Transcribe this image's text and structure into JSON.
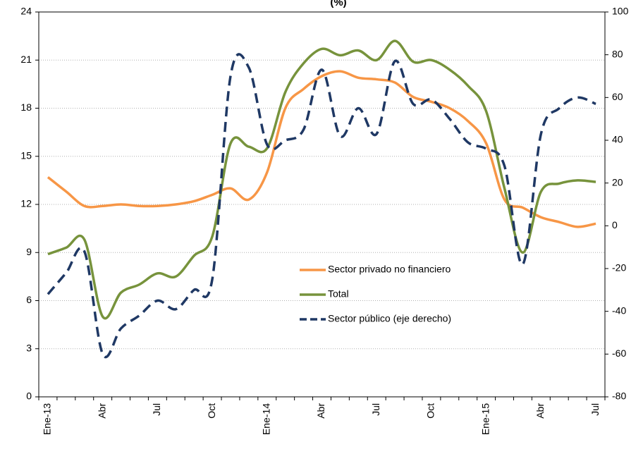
{
  "chart_data": {
    "type": "line",
    "title": "(%)",
    "categories": [
      "Ene-13",
      null,
      null,
      "Abr",
      null,
      null,
      "Jul",
      null,
      null,
      "Oct",
      null,
      null,
      "Ene-14",
      null,
      null,
      "Abr",
      null,
      null,
      "Jul",
      null,
      null,
      "Oct",
      null,
      null,
      "Ene-15",
      null,
      null,
      "Abr",
      null,
      null,
      "Jul"
    ],
    "series": [
      {
        "name": "Sector privado no financiero",
        "color": "#f79646",
        "values": [
          13.7,
          12.8,
          11.9,
          11.9,
          12.0,
          11.9,
          11.9,
          12.0,
          12.2,
          12.6,
          13.0,
          12.3,
          14.0,
          18.0,
          19.2,
          20.0,
          20.3,
          19.9,
          19.8,
          19.6,
          18.7,
          18.4,
          18.0,
          17.2,
          15.8,
          12.3,
          11.8,
          11.2,
          10.9,
          10.6,
          10.8
        ]
      },
      {
        "name": "Total",
        "color": "#77933c",
        "values": [
          8.9,
          9.3,
          9.8,
          5.0,
          6.5,
          7.0,
          7.7,
          7.5,
          8.8,
          10.0,
          15.8,
          15.6,
          15.5,
          19.0,
          20.8,
          21.7,
          21.3,
          21.6,
          21.0,
          22.2,
          20.9,
          21.0,
          20.4,
          19.4,
          17.8,
          13.0,
          9.0,
          12.8,
          13.3,
          13.5,
          13.4
        ]
      },
      {
        "name": "Sector público (eje derecho)",
        "color": "#1f3864",
        "axis": "y2",
        "dashed": true,
        "values": [
          -32,
          -22,
          -12,
          -60,
          -48,
          -42,
          -35,
          -39,
          -30,
          -25,
          70,
          74,
          38,
          40,
          45,
          73,
          42,
          55,
          43,
          77,
          57,
          59,
          50,
          39,
          36,
          28,
          -18,
          43,
          55,
          60,
          57
        ]
      }
    ],
    "ylim": [
      0,
      24
    ],
    "yticks": [
      0,
      3,
      6,
      9,
      12,
      15,
      18,
      21,
      24
    ],
    "y2lim": [
      -80,
      100
    ],
    "y2ticks": [
      -80,
      -60,
      -40,
      -20,
      0,
      20,
      40,
      60,
      80,
      100
    ],
    "grid": true
  }
}
